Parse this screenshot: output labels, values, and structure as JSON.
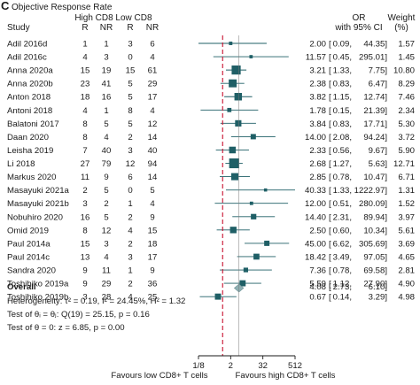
{
  "panel_label": "C",
  "chart_data": {
    "type": "forest",
    "title": "Objective Response Rate",
    "columns": {
      "study": "Study",
      "high_group": "High CD8",
      "low_group": "Low CD8",
      "r": "R",
      "nr": "NR",
      "effect": "OR",
      "ci_label": "with 95% CI",
      "weight": "Weight",
      "weight_unit": "(%)"
    },
    "studies": [
      {
        "name": "Adil 2016d",
        "hr": "1",
        "hnr": "1",
        "lr": "3",
        "lnr": "6",
        "or": 2.0,
        "lo": 0.09,
        "hi": 44.35,
        "weight": 1.57,
        "or_text": "2.00",
        "lo_text": "0.09,",
        "hi_text": "44.35]",
        "w_text": "1.57"
      },
      {
        "name": "Adil 2016c",
        "hr": "4",
        "hnr": "3",
        "lr": "0",
        "lnr": "4",
        "or": 11.57,
        "lo": 0.45,
        "hi": 295.01,
        "weight": 1.45,
        "or_text": "11.57",
        "lo_text": "0.45,",
        "hi_text": "295.01]",
        "w_text": "1.45"
      },
      {
        "name": "Anna 2020a",
        "hr": "15",
        "hnr": "19",
        "lr": "15",
        "lnr": "61",
        "or": 3.21,
        "lo": 1.33,
        "hi": 7.75,
        "weight": 10.8,
        "or_text": "3.21",
        "lo_text": "1.33,",
        "hi_text": "7.75]",
        "w_text": "10.80"
      },
      {
        "name": "Anna 2020b",
        "hr": "23",
        "hnr": "41",
        "lr": "5",
        "lnr": "29",
        "or": 2.38,
        "lo": 0.83,
        "hi": 6.47,
        "weight": 8.29,
        "or_text": "2.38",
        "lo_text": "0.83,",
        "hi_text": "6.47]",
        "w_text": "8.29"
      },
      {
        "name": "Anton 2018",
        "hr": "18",
        "hnr": "16",
        "lr": "5",
        "lnr": "17",
        "or": 3.82,
        "lo": 1.15,
        "hi": 12.74,
        "weight": 7.46,
        "or_text": "3.82",
        "lo_text": "1.15,",
        "hi_text": "12.74]",
        "w_text": "7.46"
      },
      {
        "name": "Antoni 2018",
        "hr": "4",
        "hnr": "1",
        "lr": "8",
        "lnr": "4",
        "or": 1.78,
        "lo": 0.15,
        "hi": 21.39,
        "weight": 2.34,
        "or_text": "1.78",
        "lo_text": "0.15,",
        "hi_text": "21.39]",
        "w_text": "2.34"
      },
      {
        "name": "Balatoni 2017",
        "hr": "8",
        "hnr": "5",
        "lr": "5",
        "lnr": "12",
        "or": 3.84,
        "lo": 0.83,
        "hi": 17.71,
        "weight": 5.3,
        "or_text": "3.84",
        "lo_text": "0.83,",
        "hi_text": "17.71]",
        "w_text": "5.30"
      },
      {
        "name": "Daan 2020",
        "hr": "8",
        "hnr": "4",
        "lr": "2",
        "lnr": "14",
        "or": 14.0,
        "lo": 2.08,
        "hi": 94.24,
        "weight": 3.72,
        "or_text": "14.00",
        "lo_text": "2.08,",
        "hi_text": "94.24]",
        "w_text": "3.72"
      },
      {
        "name": "Leisha 2019",
        "hr": "7",
        "hnr": "40",
        "lr": "3",
        "lnr": "40",
        "or": 2.33,
        "lo": 0.56,
        "hi": 9.67,
        "weight": 5.9,
        "or_text": "2.33",
        "lo_text": "0.56,",
        "hi_text": "9.67]",
        "w_text": "5.90"
      },
      {
        "name": "Li 2018",
        "hr": "27",
        "hnr": "79",
        "lr": "12",
        "lnr": "94",
        "or": 2.68,
        "lo": 1.27,
        "hi": 5.63,
        "weight": 12.71,
        "or_text": "2.68",
        "lo_text": "1.27,",
        "hi_text": "5.63]",
        "w_text": "12.71"
      },
      {
        "name": "Markus 2020",
        "hr": "11",
        "hnr": "9",
        "lr": "6",
        "lnr": "14",
        "or": 2.85,
        "lo": 0.78,
        "hi": 10.47,
        "weight": 6.71,
        "or_text": "2.85",
        "lo_text": "0.78,",
        "hi_text": "10.47]",
        "w_text": "6.71"
      },
      {
        "name": "Masayuki 2021a",
        "hr": "2",
        "hnr": "5",
        "lr": "0",
        "lnr": "5",
        "or": 40.33,
        "lo": 1.33,
        "hi": 1222.97,
        "weight": 1.31,
        "or_text": "40.33",
        "lo_text": "1.33,",
        "hi_text": "1222.97]",
        "w_text": "1.31"
      },
      {
        "name": "Masayuki 2021b",
        "hr": "3",
        "hnr": "2",
        "lr": "1",
        "lnr": "4",
        "or": 12.0,
        "lo": 0.51,
        "hi": 280.09,
        "weight": 1.52,
        "or_text": "12.00",
        "lo_text": "0.51,",
        "hi_text": "280.09]",
        "w_text": "1.52"
      },
      {
        "name": "Nobuhiro 2020",
        "hr": "16",
        "hnr": "5",
        "lr": "2",
        "lnr": "9",
        "or": 14.4,
        "lo": 2.31,
        "hi": 89.94,
        "weight": 3.97,
        "or_text": "14.40",
        "lo_text": "2.31,",
        "hi_text": "89.94]",
        "w_text": "3.97"
      },
      {
        "name": "Omid 2019",
        "hr": "8",
        "hnr": "12",
        "lr": "4",
        "lnr": "15",
        "or": 2.5,
        "lo": 0.6,
        "hi": 10.34,
        "weight": 5.61,
        "or_text": "2.50",
        "lo_text": "0.60,",
        "hi_text": "10.34]",
        "w_text": "5.61"
      },
      {
        "name": "Paul 2014a",
        "hr": "15",
        "hnr": "3",
        "lr": "2",
        "lnr": "18",
        "or": 45.0,
        "lo": 6.62,
        "hi": 305.69,
        "weight": 3.69,
        "or_text": "45.00",
        "lo_text": "6.62,",
        "hi_text": "305.69]",
        "w_text": "3.69"
      },
      {
        "name": "Paul 2014c",
        "hr": "13",
        "hnr": "4",
        "lr": "3",
        "lnr": "17",
        "or": 18.42,
        "lo": 3.49,
        "hi": 97.05,
        "weight": 4.65,
        "or_text": "18.42",
        "lo_text": "3.49,",
        "hi_text": "97.05]",
        "w_text": "4.65"
      },
      {
        "name": "Sandra 2020",
        "hr": "9",
        "hnr": "11",
        "lr": "1",
        "lnr": "9",
        "or": 7.36,
        "lo": 0.78,
        "hi": 69.58,
        "weight": 2.81,
        "or_text": "7.36",
        "lo_text": "0.78,",
        "hi_text": "69.58]",
        "w_text": "2.81"
      },
      {
        "name": "Toshihiko 2019a",
        "hr": "9",
        "hnr": "29",
        "lr": "2",
        "lnr": "36",
        "or": 5.59,
        "lo": 1.12,
        "hi": 27.9,
        "weight": 4.9,
        "or_text": "5.59",
        "lo_text": "1.12,",
        "hi_text": "27.90]",
        "w_text": "4.90"
      },
      {
        "name": "Toshihiko 2019b",
        "hr": "3",
        "hnr": "28",
        "lr": "4",
        "lnr": "25",
        "or": 0.67,
        "lo": 0.14,
        "hi": 3.29,
        "weight": 4.98,
        "or_text": "0.67",
        "lo_text": "0.14,",
        "hi_text": "3.29]",
        "w_text": "4.98"
      }
    ],
    "overall": {
      "label": "Overall",
      "or": 4.08,
      "lo": 2.73,
      "hi": 6.1,
      "or_text": "4.08",
      "lo_text": "2.73,",
      "hi_text": "6.10]"
    },
    "stats": [
      "Heterogeneity: τ² = 0.19, I² = 24.45%, H² = 1.32",
      "Test of θᵢ = θⱼ: Q(19) = 25.15, p = 0.16",
      "Test of θ = 0: z = 6.85, p = 0.00"
    ],
    "x_axis": {
      "scale": "log2",
      "ticks": [
        0.125,
        2,
        32,
        512
      ],
      "tick_labels": [
        "1/8",
        "2",
        "32",
        "512"
      ],
      "range": [
        0.125,
        512
      ]
    },
    "direction_labels": {
      "left": "Favours low CD8+ T cells",
      "right": "Favours high CD8+ T cells"
    },
    "colors": {
      "markers": "#1f5f66",
      "overall_diamond": "#8fb0b3",
      "reference_line": "#c8102e",
      "ci_line": "#1f5f66"
    }
  }
}
